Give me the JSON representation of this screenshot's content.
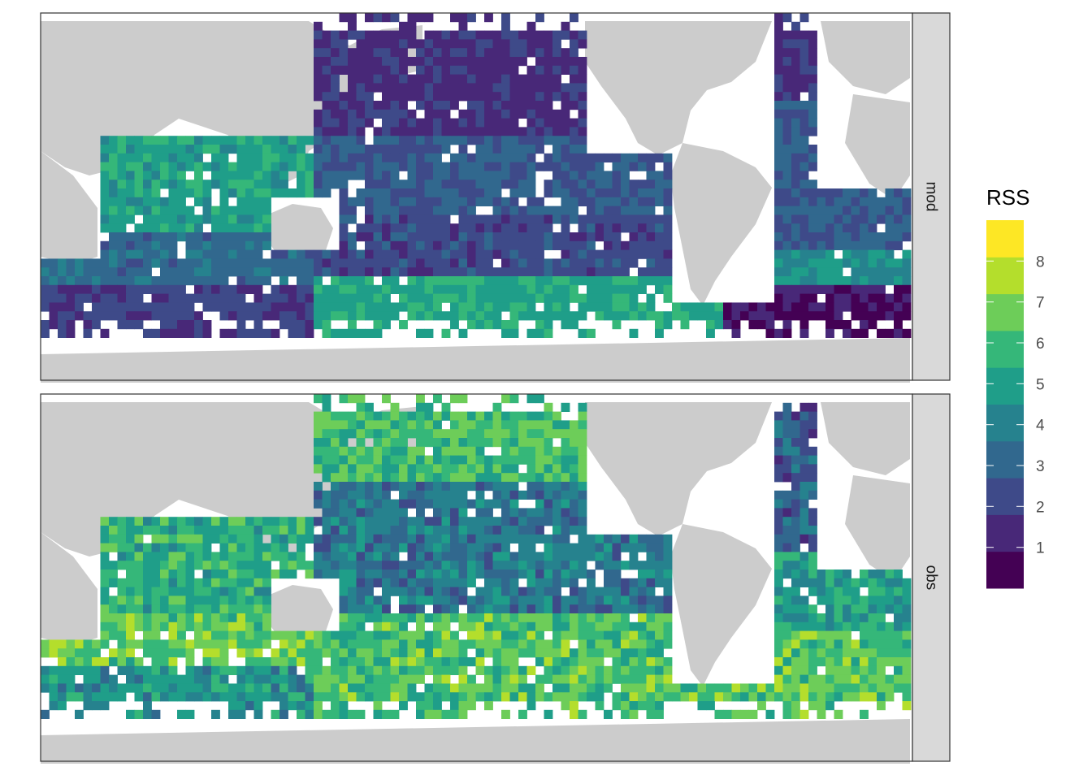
{
  "facets": [
    {
      "label": "mod"
    },
    {
      "label": "obs"
    }
  ],
  "legend": {
    "title": "RSS",
    "ticks": [
      "1",
      "2",
      "3",
      "4",
      "5",
      "6",
      "7",
      "8"
    ],
    "range": [
      0,
      9
    ],
    "colors": [
      "#440154",
      "#482878",
      "#3e4a89",
      "#31688e",
      "#26828e",
      "#1f9e89",
      "#35b779",
      "#6dcd59",
      "#b4de2c",
      "#fde725"
    ]
  },
  "colors": {
    "land": "#cccccc",
    "ocean_background": "#ffffff",
    "strip_fill": "#d9d9d9",
    "panel_border": "#333333"
  }
}
